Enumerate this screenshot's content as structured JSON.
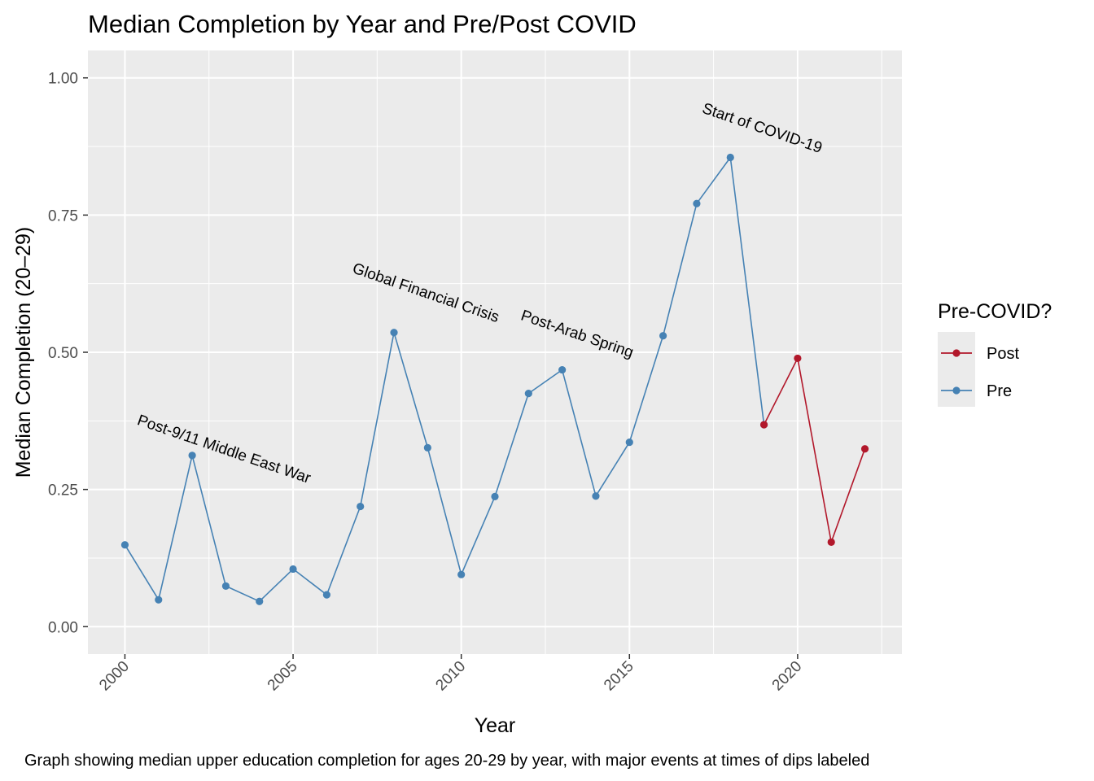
{
  "chart_data": {
    "type": "line",
    "title": "Median Completion by Year and Pre/Post COVID",
    "xlabel": "Year",
    "ylabel": "Median Completion (20–29)",
    "caption": "Graph showing median upper education completion for ages 20-29 by year, with major events at times of dips labeled",
    "xlim": [
      1998.9,
      2023.1
    ],
    "ylim": [
      -0.05,
      1.05
    ],
    "x_ticks": [
      2000,
      2005,
      2010,
      2015,
      2020
    ],
    "x_tick_labels": [
      "2000",
      "2005",
      "2010",
      "2015",
      "2020"
    ],
    "y_ticks": [
      0,
      0.25,
      0.5,
      0.75,
      1.0
    ],
    "y_tick_labels": [
      "0.00",
      "0.25",
      "0.50",
      "0.75",
      "1.00"
    ],
    "grid": true,
    "legend": {
      "title": "Pre-COVID?",
      "position": "right",
      "entries": [
        {
          "label": "Post",
          "color": "#b2182b"
        },
        {
          "label": "Pre",
          "color": "#4682b4"
        }
      ]
    },
    "series": [
      {
        "name": "Pre",
        "color": "#4682b4",
        "x": [
          2000,
          2001,
          2002,
          2003,
          2004,
          2005,
          2006,
          2007,
          2008,
          2009,
          2010,
          2011,
          2012,
          2013,
          2014,
          2015,
          2016,
          2017,
          2018,
          2019
        ],
        "y": [
          0.149,
          0.049,
          0.312,
          0.074,
          0.046,
          0.105,
          0.058,
          0.219,
          0.536,
          0.326,
          0.095,
          0.237,
          0.425,
          0.468,
          0.238,
          0.336,
          0.53,
          0.771,
          0.855,
          0.368
        ]
      },
      {
        "name": "Post",
        "color": "#b2182b",
        "x": [
          2019,
          2020,
          2021,
          2022
        ],
        "y": [
          0.368,
          0.489,
          0.154,
          0.324
        ]
      }
    ],
    "annotations": [
      {
        "text": "Post-9/11 Middle East War",
        "x": 2002.9,
        "y": 0.315,
        "angle": 19
      },
      {
        "text": "Global Financial Crisis",
        "x": 2008.9,
        "y": 0.6,
        "angle": 19
      },
      {
        "text": "Post-Arab Spring",
        "x": 2013.4,
        "y": 0.525,
        "angle": 19
      },
      {
        "text": "Start of COVID-19",
        "x": 2018.9,
        "y": 0.9,
        "angle": 19
      }
    ]
  }
}
